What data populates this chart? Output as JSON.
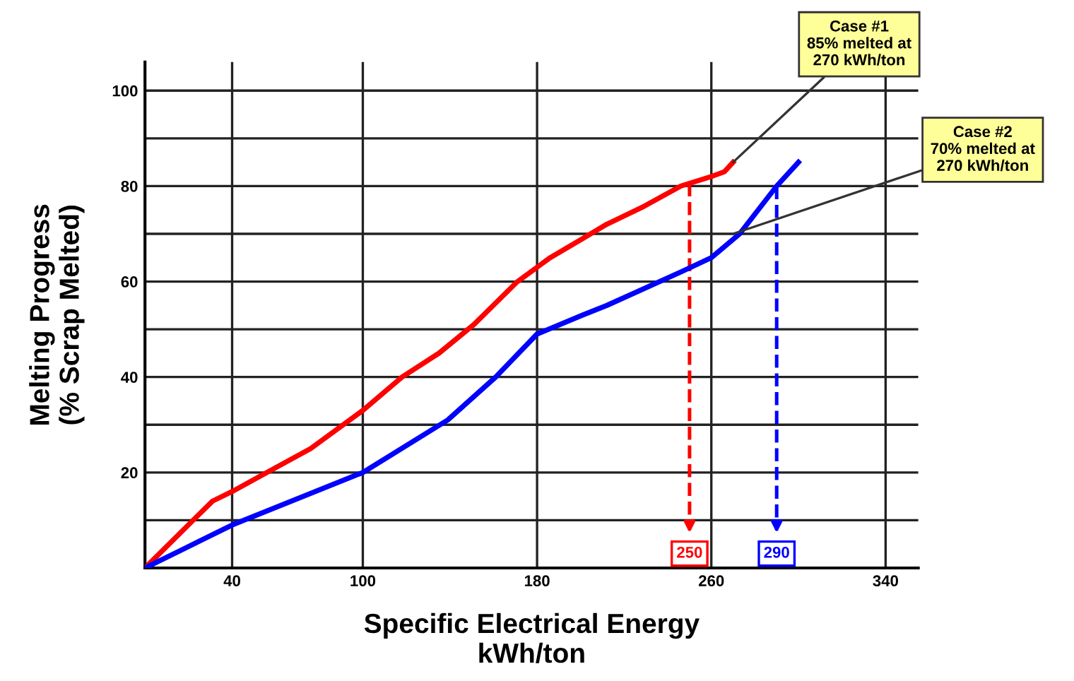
{
  "chart_data": {
    "type": "line",
    "xlabel": "Specific Electrical Energy\nkWh/ton",
    "ylabel": "Melting Progress\n(% Scrap Melted)",
    "series": [
      {
        "color": "#ff0000",
        "x": [
          0,
          21,
          31,
          40,
          58,
          76,
          100,
          118,
          135,
          151,
          171,
          186,
          201,
          212,
          228,
          246,
          260,
          266,
          270
        ],
        "values": [
          0,
          9.5,
          14,
          16,
          20.5,
          25,
          33,
          40,
          45,
          51,
          60,
          65,
          69,
          72,
          75.5,
          80,
          82,
          83,
          85
        ]
      },
      {
        "color": "#0000ff",
        "x": [
          0,
          40,
          100,
          139,
          161,
          180,
          201,
          212,
          246,
          260,
          273,
          290,
          300
        ],
        "values": [
          0,
          9,
          20,
          31,
          40,
          49,
          53,
          55,
          62,
          65,
          70,
          80,
          85
        ]
      }
    ],
    "annotations": [
      {
        "text": "Case #1\n85% melted at\n270 kWh/ton",
        "x": 270,
        "y": 85
      },
      {
        "text": "Case #2\n70% melted at\n270 kWh/ton",
        "x": 270,
        "y": 70
      }
    ],
    "ref_lines": [
      {
        "axis": "x",
        "value": 250,
        "label": "250",
        "color": "#ff0000",
        "line_style": "dashed"
      },
      {
        "axis": "x",
        "value": 290,
        "label": "290",
        "color": "#0000ff",
        "line_style": "dashed"
      }
    ],
    "xlim": [
      0,
      355
    ],
    "xticks": [
      40,
      100,
      180,
      260,
      340
    ],
    "ylim": [
      0,
      106
    ],
    "yticks": [
      {
        "value": 10,
        "label": null
      },
      20,
      {
        "value": 30,
        "label": null
      },
      40,
      {
        "value": 50,
        "label": null
      },
      60,
      {
        "value": 70,
        "label": null
      },
      80,
      {
        "value": 90,
        "label": null
      },
      100
    ],
    "grid": true,
    "legend": false,
    "marker": "none",
    "line_style": "solid"
  }
}
